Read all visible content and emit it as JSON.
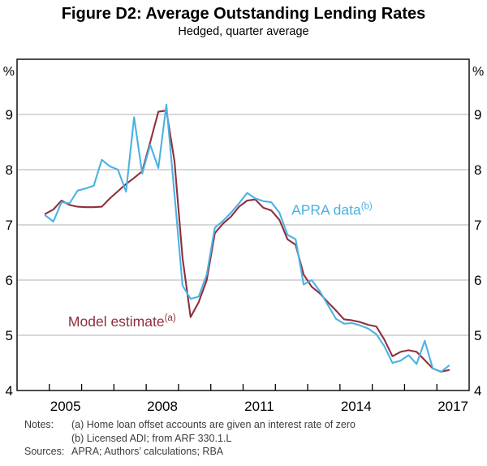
{
  "header": {
    "title": "Figure D2: Average Outstanding Lending Rates",
    "subtitle": "Hedged, quarter average"
  },
  "chart_data": {
    "type": "line",
    "title": "Figure D2: Average Outstanding Lending Rates",
    "subtitle": "Hedged, quarter average",
    "unit_label_left": "%",
    "unit_label_right": "%",
    "xlim": [
      2004,
      2018
    ],
    "ylim": [
      4,
      10
    ],
    "yticks": [
      4,
      5,
      6,
      7,
      8,
      9
    ],
    "gridlines": [
      5,
      6,
      7,
      8,
      9
    ],
    "xticks": [
      2005,
      2006,
      2007,
      2008,
      2009,
      2010,
      2011,
      2012,
      2013,
      2014,
      2015,
      2016,
      2017
    ],
    "xtick_labels": [
      {
        "label": "2005",
        "x": 2005.5
      },
      {
        "label": "2008",
        "x": 2008.5
      },
      {
        "label": "2011",
        "x": 2011.5
      },
      {
        "label": "2014",
        "x": 2014.5
      },
      {
        "label": "2017",
        "x": 2017.5
      }
    ],
    "x": [
      2004.875,
      2005.125,
      2005.375,
      2005.625,
      2005.875,
      2006.125,
      2006.375,
      2006.625,
      2006.875,
      2007.125,
      2007.375,
      2007.625,
      2007.875,
      2008.125,
      2008.375,
      2008.625,
      2008.875,
      2009.125,
      2009.375,
      2009.625,
      2009.875,
      2010.125,
      2010.375,
      2010.625,
      2010.875,
      2011.125,
      2011.375,
      2011.625,
      2011.875,
      2012.125,
      2012.375,
      2012.625,
      2012.875,
      2013.125,
      2013.375,
      2013.625,
      2013.875,
      2014.125,
      2014.375,
      2014.625,
      2014.875,
      2015.125,
      2015.375,
      2015.625,
      2015.875,
      2016.125,
      2016.375,
      2016.625,
      2016.875,
      2017.125,
      2017.375
    ],
    "series": [
      {
        "name": "Model estimate",
        "sup": "(a)",
        "color": "#8f2f3c",
        "values": [
          7.2,
          7.28,
          7.44,
          7.36,
          7.33,
          7.32,
          7.32,
          7.33,
          7.48,
          7.61,
          7.74,
          7.85,
          7.97,
          8.5,
          9.05,
          9.07,
          8.15,
          6.4,
          5.33,
          5.6,
          6.0,
          6.85,
          7.02,
          7.15,
          7.33,
          7.44,
          7.46,
          7.31,
          7.26,
          7.09,
          6.74,
          6.64,
          6.1,
          5.88,
          5.76,
          5.6,
          5.45,
          5.29,
          5.27,
          5.24,
          5.19,
          5.16,
          4.92,
          4.62,
          4.7,
          4.73,
          4.7,
          4.55,
          4.4,
          4.34,
          4.37
        ]
      },
      {
        "name": "APRA data",
        "sup": "(b)",
        "color": "#4bb2e3",
        "values": [
          7.17,
          7.06,
          7.41,
          7.39,
          7.62,
          7.66,
          7.71,
          8.18,
          8.06,
          8.0,
          7.6,
          8.95,
          7.93,
          8.45,
          8.03,
          9.18,
          7.55,
          5.9,
          5.66,
          5.7,
          6.1,
          6.95,
          7.07,
          7.22,
          7.39,
          7.58,
          7.48,
          7.43,
          7.41,
          7.22,
          6.82,
          6.74,
          5.92,
          6.0,
          5.8,
          5.55,
          5.3,
          5.21,
          5.22,
          5.18,
          5.12,
          5.02,
          4.8,
          4.5,
          4.54,
          4.64,
          4.48,
          4.9,
          4.4,
          4.34,
          4.45
        ]
      }
    ],
    "annotations": [
      {
        "text": "Model estimate",
        "sup": "(a)",
        "x": 2007.25,
        "y": 5.25,
        "color": "#8f2f3c"
      },
      {
        "text": "APRA data",
        "sup": "(b)",
        "x": 2013.75,
        "y": 7.27,
        "color": "#4bb2e3"
      }
    ],
    "grid": true,
    "legend_position": "inline-annotations"
  },
  "notes": {
    "notes_label": "Notes:",
    "note_a": "(a) Home loan offset accounts are given an interest rate of zero",
    "note_b": "(b) Licensed ADI; from ARF 330.1.L",
    "sources_label": "Sources:",
    "sources_text": "APRA; Authors’ calculations; RBA"
  },
  "colors": {
    "apra_blue": "#4bb2e3",
    "model_red": "#8f2f3c",
    "grid_gray": "#b0b0b0",
    "frame_black": "#000000"
  }
}
